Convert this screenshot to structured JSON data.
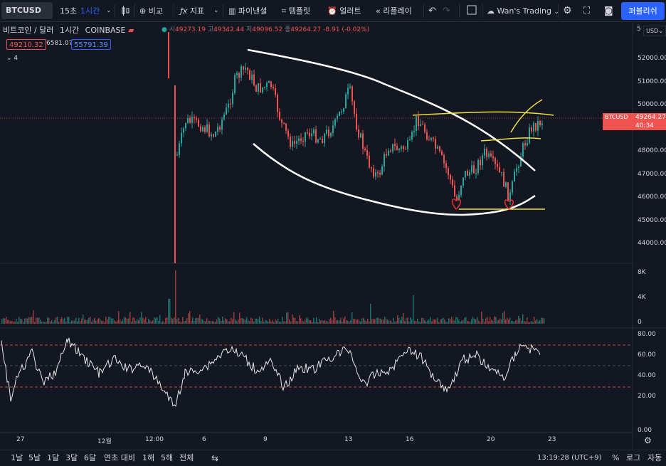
{
  "toolbar": {
    "symbol": "BTCUSD",
    "interval_15s": "15초",
    "interval_1h": "1시간",
    "compare": "비교",
    "indicators": "지표",
    "financials": "파이낸셜",
    "templates": "템플릿",
    "alert": "얼러트",
    "replay": "리플레이",
    "layout_name": "Wan's Trading",
    "publish": "퍼블리쉬"
  },
  "legend": {
    "title": "비트코인 / 달러",
    "interval": "1시간",
    "exchange": "COINBASE",
    "o_label": "시",
    "o": "49273.19",
    "h_label": "고",
    "h": "49342.44",
    "l_label": "저",
    "l": "49096.52",
    "c_label": "종",
    "c": "49264.27",
    "change": "-8.91 (-0.02%)",
    "bid": "49210.32",
    "spread": "6581.07",
    "ask": "55791.39",
    "indicator_count": "4"
  },
  "price_axis": {
    "currency": "USD",
    "top_partial": "5",
    "ticks": [
      "52000.00",
      "51000.00",
      "50000.00",
      "49000.00",
      "48000.00",
      "47000.00",
      "46000.00",
      "45000.00",
      "44000.00"
    ],
    "last_symbol": "BTCUSD",
    "last_price": "49264.27",
    "countdown": "40:34"
  },
  "volume_axis": {
    "ticks": [
      "8K",
      "4K",
      "0"
    ]
  },
  "rsi_axis": {
    "ticks": [
      "80.00",
      "60.00",
      "40.00",
      "20.00",
      "0.00"
    ]
  },
  "time_axis": {
    "ticks": [
      "27",
      "12월",
      "12:00",
      "6",
      "9",
      "13",
      "16",
      "20",
      "23"
    ]
  },
  "bottom": {
    "ranges": [
      "1날",
      "5날",
      "1달",
      "3달",
      "6달",
      "연초 대비",
      "1해",
      "5해",
      "전체"
    ],
    "clock": "13:19:28 (UTC+9)",
    "percent": "%",
    "log": "로그",
    "auto": "자동"
  },
  "colors": {
    "up": "#26a69a",
    "down": "#ef5350",
    "accent": "#2962ff",
    "trend_white": "#ffffff",
    "trend_yellow": "#f0e040"
  }
}
